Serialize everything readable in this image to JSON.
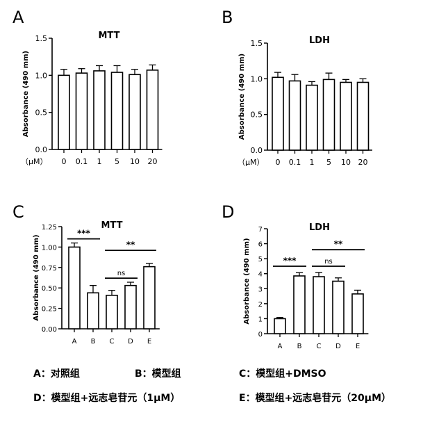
{
  "panels": [
    {
      "letter": "A",
      "title": "MTT",
      "ylabel": "Absorbance (490 mm)",
      "unit_label": "（μM）"
    },
    {
      "letter": "B",
      "title": "LDH",
      "ylabel": "Absorbance (490 mm)",
      "unit_label": "（μM）"
    },
    {
      "letter": "C",
      "title": "MTT",
      "ylabel": "Absorbance (490 mm)"
    },
    {
      "letter": "D",
      "title": "LDH",
      "ylabel": "Absorbance (490 mm)"
    }
  ],
  "legend": {
    "a": "A：对照组",
    "b": "B：模型组",
    "c": "C：模型组+DMSO",
    "d": "D：模型组+远志皂苷元（1μM）",
    "e": "E：模型组+远志皂苷元（20μM）"
  },
  "chart_data": [
    {
      "panel": "A",
      "type": "bar",
      "title": "MTT",
      "ylabel": "Absorbance (490 mm)",
      "categories": [
        "0",
        "0.1",
        "1",
        "5",
        "10",
        "20"
      ],
      "values": [
        1.0,
        1.03,
        1.06,
        1.04,
        1.01,
        1.07
      ],
      "errors": [
        0.08,
        0.06,
        0.07,
        0.09,
        0.07,
        0.07
      ],
      "ylim": [
        0,
        1.5
      ],
      "yticks": [
        "0.0",
        "0.5",
        "1.0",
        "1.5"
      ],
      "significance": []
    },
    {
      "panel": "B",
      "type": "bar",
      "title": "LDH",
      "ylabel": "Absorbance (490 mm)",
      "categories": [
        "0",
        "0.1",
        "1",
        "5",
        "10",
        "20"
      ],
      "values": [
        1.02,
        0.97,
        0.91,
        0.99,
        0.95,
        0.95
      ],
      "errors": [
        0.07,
        0.09,
        0.05,
        0.09,
        0.04,
        0.05
      ],
      "ylim": [
        0,
        1.5
      ],
      "yticks": [
        "0.0",
        "0.5",
        "1.0",
        "1.5"
      ],
      "significance": []
    },
    {
      "panel": "C",
      "type": "bar",
      "title": "MTT",
      "ylabel": "Absorbance (490 mm)",
      "categories": [
        "A",
        "B",
        "C",
        "D",
        "E"
      ],
      "values": [
        1.0,
        0.44,
        0.41,
        0.53,
        0.76
      ],
      "errors": [
        0.05,
        0.09,
        0.06,
        0.04,
        0.04
      ],
      "ylim": [
        0,
        1.25
      ],
      "yticks": [
        "0.00",
        "0.25",
        "0.50",
        "0.75",
        "1.00",
        "1.25"
      ],
      "significance": [
        {
          "from": 0,
          "to": 1,
          "label": "***",
          "y": 1.1
        },
        {
          "from": 2,
          "to": 3,
          "label": "ns",
          "y": 0.62
        },
        {
          "from": 2,
          "to": 4,
          "label": "**",
          "y": 0.96
        }
      ]
    },
    {
      "panel": "D",
      "type": "bar",
      "title": "LDH",
      "ylabel": "Absorbance (490 mm)",
      "categories": [
        "A",
        "B",
        "C",
        "D",
        "E"
      ],
      "values": [
        1.0,
        3.85,
        3.8,
        3.5,
        2.65
      ],
      "errors": [
        0.08,
        0.22,
        0.28,
        0.22,
        0.25
      ],
      "ylim": [
        0,
        7
      ],
      "yticks": [
        "0",
        "1",
        "2",
        "3",
        "4",
        "5",
        "6",
        "7"
      ],
      "significance": [
        {
          "from": 0,
          "to": 1,
          "label": "***",
          "y": 4.5
        },
        {
          "from": 2,
          "to": 3,
          "label": "ns",
          "y": 4.5
        },
        {
          "from": 2,
          "to": 4,
          "label": "**",
          "y": 5.6
        }
      ]
    }
  ]
}
